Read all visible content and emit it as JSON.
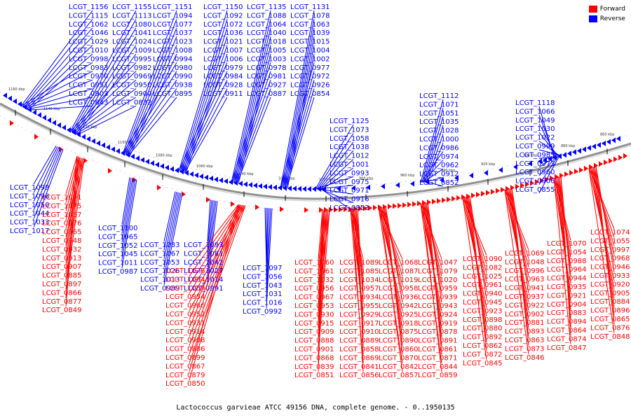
{
  "caption": "Lactococcus garvieae ATCC 49156 DNA, complete genome. - 0..1950135",
  "legend": [
    {
      "label": "Forward",
      "color": "#ff0000"
    },
    {
      "label": "Reverse",
      "color": "#0000ff"
    }
  ],
  "colors": {
    "forward": "#ff0000",
    "reverse": "#0000ff",
    "backbone": "#808080",
    "tick": "#000000"
  },
  "ticks": [
    "1160 kbp",
    "1140 kbp",
    "1120 kbp",
    "1100 kbp",
    "1080 kbp",
    "1060 kbp",
    "1040 kbp",
    "1020 kbp",
    "1000 kbp",
    "980 kbp",
    "960 kbp",
    "940 kbp",
    "920 kbp",
    "900 kbp",
    "880 kbp",
    "860 kbp"
  ],
  "reverse_labels_top": [
    "LCGT_1156",
    "LCGT_1155",
    "LCGT_1151",
    "LCGT_1150",
    "LCGT_1135",
    "LCGT_1131",
    "LCGT_1125",
    "LCGT_1112",
    "LCGT_1118",
    "LCGT_1115",
    "LCGT_1113",
    "LCGT_1094",
    "LCGT_1092",
    "LCGT_1088",
    "LCGT_1078",
    "LCGT_1073",
    "LCGT_1071",
    "LCGT_1066",
    "LCGT_1062",
    "LCGT_1080",
    "LCGT_1077",
    "LCGT_1072",
    "LCGT_1064",
    "LCGT_1063",
    "LCGT_1058",
    "LCGT_1051",
    "LCGT_1049",
    "LCGT_1046",
    "LCGT_1041",
    "LCGT_1037",
    "LCGT_1036",
    "LCGT_1040",
    "LCGT_1039",
    "LCGT_1038",
    "LCGT_1035",
    "LCGT_1030",
    "LCGT_1029",
    "LCGT_1024",
    "LCGT_1023",
    "LCGT_1021",
    "LCGT_1018",
    "LCGT_1015",
    "LCGT_1012",
    "LCGT_1028",
    "LCGT_1022",
    "LCGT_1010",
    "LCGT_1009",
    "LCGT_1008",
    "LCGT_1007",
    "LCGT_1005",
    "LCGT_1004",
    "LCGT_1001",
    "LCGT_1000",
    "LCGT_0999",
    "LCGT_0998",
    "LCGT_0995",
    "LCGT_0994",
    "LCGT_1006",
    "LCGT_1003",
    "LCGT_1002",
    "LCGT_0993",
    "LCGT_0986",
    "LCGT_0985",
    "LCGT_0983",
    "LCGT_0982",
    "LCGT_0980",
    "LCGT_0979",
    "LCGT_0978",
    "LCGT_0977",
    "LCGT_0975",
    "LCGT_0974",
    "LCGT_0973",
    "LCGT_0970",
    "LCGT_0969",
    "LCGT_0990",
    "LCGT_0984",
    "LCGT_0981",
    "LCGT_0972",
    "LCGT_0971",
    "LCGT_0962",
    "LCGT_0960",
    "LCGT_0951",
    "LCGT_0950",
    "LCGT_0938",
    "LCGT_0928",
    "LCGT_0927",
    "LCGT_0926",
    "LCGT_0916",
    "LCGT_0912",
    "LCGT_0906",
    "LCGT_0903",
    "LCGT_0900",
    "LCGT_0895",
    "LCGT_0911",
    "LCGT_0887",
    "LCGT_0854",
    "LCGT_0853",
    "LCGT_0852",
    "LCGT_0855",
    "LCGT_0843",
    "LCGT_0832"
  ],
  "reverse_labels_bottom": [
    "LCGT_1099",
    "LCGT_1100",
    "LCGT_1083",
    "LCGT_1093",
    "LCGT_1097",
    "LCGT_1098",
    "LCGT_1065",
    "LCGT_1067",
    "LCGT_1081",
    "LCGT_1056",
    "LCGT_1050",
    "LCGT_1052",
    "LCGT_1053",
    "LCGT_1042",
    "LCGT_1043",
    "LCGT_1044",
    "LCGT_1045",
    "LCGT_1026",
    "LCGT_1027",
    "LCGT_1031",
    "LCGT_1033",
    "LCGT_1011",
    "LCGT_1013",
    "LCGT_1014",
    "LCGT_1016",
    "LCGT_1017",
    "LCGT_0987",
    "LCGT_0989",
    "LCGT_0991",
    "LCGT_0992"
  ],
  "forward_labels": [
    "LCGT_1091",
    "LCGT_1076",
    "LCGT_1060",
    "LCGT_1089",
    "LCGT_1068",
    "LCGT_1047",
    "LCGT_1090",
    "LCGT_1069",
    "LCGT_1070",
    "LCGT_1074",
    "LCGT_1075",
    "LCGT_1084",
    "LCGT_1061",
    "LCGT_1085",
    "LCGT_1087",
    "LCGT_1079",
    "LCGT_1082",
    "LCGT_1048",
    "LCGT_1054",
    "LCGT_1055",
    "LCGT_1057",
    "LCGT_1059",
    "LCGT_1032",
    "LCGT_1034",
    "LCGT_1019",
    "LCGT_1020",
    "LCGT_1025",
    "LCGT_0996",
    "LCGT_0988",
    "LCGT_0997",
    "LCGT_0976",
    "LCGT_0954",
    "LCGT_0956",
    "LCGT_0957",
    "LCGT_0958",
    "LCGT_0959",
    "LCGT_0961",
    "LCGT_0963",
    "LCGT_0964",
    "LCGT_0968",
    "LCGT_0965",
    "LCGT_0966",
    "LCGT_0967",
    "LCGT_0934",
    "LCGT_0936",
    "LCGT_0939",
    "LCGT_0940",
    "LCGT_0941",
    "LCGT_0944",
    "LCGT_0946",
    "LCGT_0948",
    "LCGT_0952",
    "LCGT_0953",
    "LCGT_0955",
    "LCGT_0942",
    "LCGT_0943",
    "LCGT_0945",
    "LCGT_0937",
    "LCGT_0935",
    "LCGT_0933",
    "LCGT_0932",
    "LCGT_0931",
    "LCGT_0930",
    "LCGT_0929",
    "LCGT_0925",
    "LCGT_0924",
    "LCGT_0923",
    "LCGT_0922",
    "LCGT_0921",
    "LCGT_0920",
    "LCGT_0913",
    "LCGT_0914",
    "LCGT_0915",
    "LCGT_0917",
    "LCGT_0918",
    "LCGT_0919",
    "LCGT_0898",
    "LCGT_0902",
    "LCGT_0904",
    "LCGT_0905",
    "LCGT_0907",
    "LCGT_0908",
    "LCGT_0909",
    "LCGT_0910",
    "LCGT_0875",
    "LCGT_0878",
    "LCGT_0880",
    "LCGT_0881",
    "LCGT_0883",
    "LCGT_0884",
    "LCGT_0885",
    "LCGT_0886",
    "LCGT_0888",
    "LCGT_0889",
    "LCGT_0890",
    "LCGT_0891",
    "LCGT_0892",
    "LCGT_0893",
    "LCGT_0894",
    "LCGT_0896",
    "LCGT_0897",
    "LCGT_0899",
    "LCGT_0901",
    "LCGT_0858",
    "LCGT_0860",
    "LCGT_0861",
    "LCGT_0862",
    "LCGT_0863",
    "LCGT_0864",
    "LCGT_0865",
    "LCGT_0866",
    "LCGT_0867",
    "LCGT_0868",
    "LCGT_0869",
    "LCGT_0870",
    "LCGT_0871",
    "LCGT_0872",
    "LCGT_0873",
    "LCGT_0874",
    "LCGT_0876",
    "LCGT_0877",
    "LCGT_0879",
    "LCGT_0839",
    "LCGT_0841",
    "LCGT_0842",
    "LCGT_0844",
    "LCGT_0845",
    "LCGT_0846",
    "LCGT_0847",
    "LCGT_0848",
    "LCGT_0849",
    "LCGT_0850",
    "LCGT_0851",
    "LCGT_0856",
    "LCGT_0857",
    "LCGT_0859"
  ]
}
